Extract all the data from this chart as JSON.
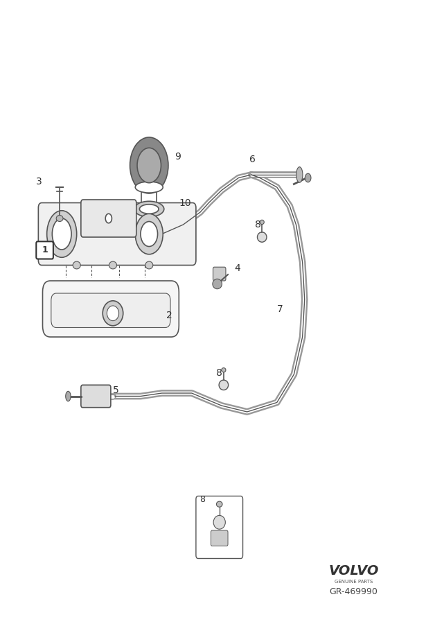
{
  "bg_color": "#ffffff",
  "line_color": "#555555",
  "dark_color": "#333333",
  "fig_width": 6.15,
  "fig_height": 9.0,
  "dpi": 100,
  "volvo_text": "VOLVO",
  "genuine_parts": "GENUINE PARTS",
  "part_number": "GR-469990"
}
